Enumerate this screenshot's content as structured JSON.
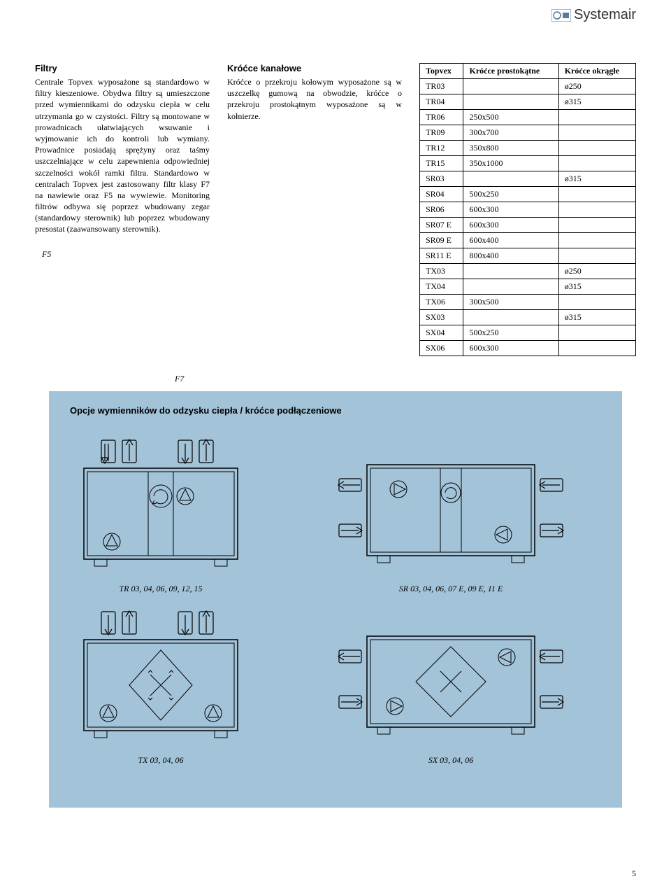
{
  "brand": "Systemair",
  "columns": {
    "left": {
      "heading": "Filtry",
      "body": "Centrale Topvex wyposażone są standardowo w filtry kieszeniowe. Obydwa filtry są umieszczone przed wymiennikami do odzysku ciepła w celu utrzymania go w czystości. Filtry są montowane w prowadnicach ułatwiających wsuwanie i wyjmowanie ich do kontroli lub wymiany. Prowadnice posiadają sprężyny oraz taśmy uszczelniające w celu zapewnienia odpowiedniej szczelności wokół ramki filtra. Standardowo w centralach Topvex jest zastosowany filtr klasy F7 na nawiewie oraz F5 na wywiewie. Monitoring filtrów odbywa się poprzez wbudowany zegar (standardowy sterownik) lub poprzez wbudowany presostat (zaawansowany sterownik).",
      "footnote": "F5"
    },
    "mid": {
      "heading": "Króćce kanałowe",
      "body": "Króćce o przekroju kołowym wyposażone są w uszczelkę gumową na obwodzie, króćce o przekroju prostokątnym wyposażone są w kołnierze."
    }
  },
  "table": {
    "headers": [
      "Topvex",
      "Króćce prostokątne",
      "Króćce okrągłe"
    ],
    "rows": [
      [
        "TR03",
        "",
        "ø250"
      ],
      [
        "TR04",
        "",
        "ø315"
      ],
      [
        "TR06",
        "250x500",
        ""
      ],
      [
        "TR09",
        "300x700",
        ""
      ],
      [
        "TR12",
        "350x800",
        ""
      ],
      [
        "TR15",
        "350x1000",
        ""
      ],
      [
        "SR03",
        "",
        "ø315"
      ],
      [
        "SR04",
        "500x250",
        ""
      ],
      [
        "SR06",
        "600x300",
        ""
      ],
      [
        "SR07 E",
        "600x300",
        ""
      ],
      [
        "SR09 E",
        "600x400",
        ""
      ],
      [
        "SR11 E",
        "800x400",
        ""
      ],
      [
        "TX03",
        "",
        "ø250"
      ],
      [
        "TX04",
        "",
        "ø315"
      ],
      [
        "TX06",
        "300x500",
        ""
      ],
      [
        "SX03",
        "",
        "ø315"
      ],
      [
        "SX04",
        "500x250",
        ""
      ],
      [
        "SX06",
        "600x300",
        ""
      ]
    ]
  },
  "mid_footnote": "F7",
  "panel": {
    "heading": "Opcje wymienników do odzysku ciepła / króćce podłączeniowe",
    "captions": {
      "tr": "TR 03, 04, 06, 09, 12, 15",
      "sr": "SR 03, 04, 06, 07 E, 09 E, 11 E",
      "tx": "TX 03, 04, 06",
      "sx": "SX 03, 04, 06"
    }
  },
  "page_number": "5",
  "colors": {
    "panel_bg": "#a3c3d9",
    "stroke": "#000000",
    "text": "#000000"
  }
}
